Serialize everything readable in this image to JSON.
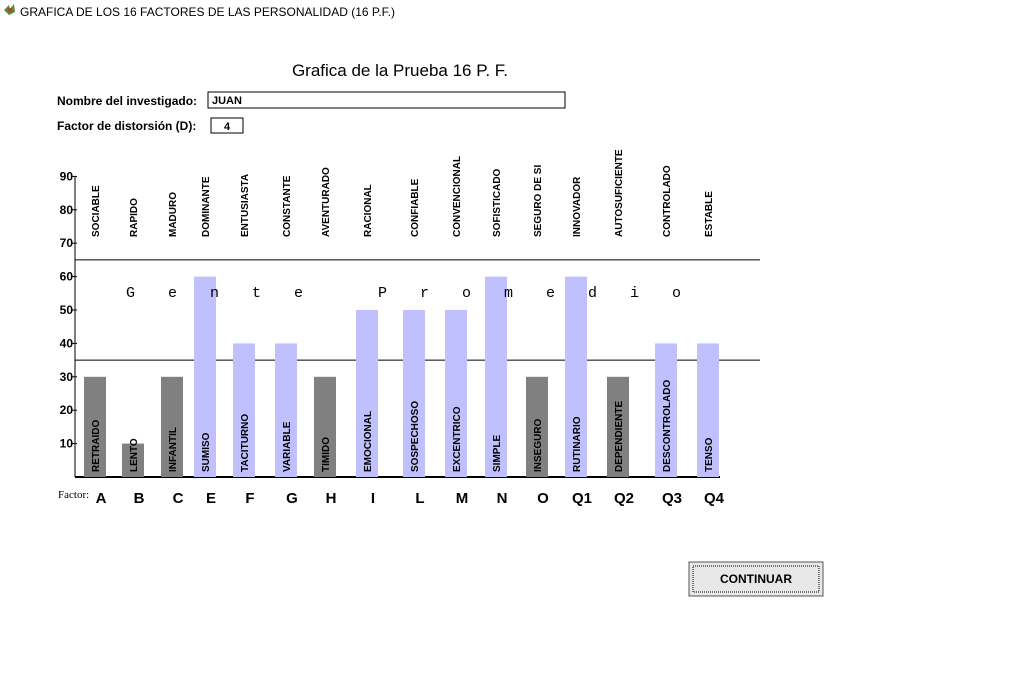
{
  "window": {
    "title": "GRAFICA DE LOS 16 FACTORES DE LAS PERSONALIDAD (16 P.F.)"
  },
  "heading": "Grafica de la Prueba 16 P. F.",
  "fields": [
    {
      "label": "Nombre del investigado:",
      "value": "JUAN"
    },
    {
      "label": "Factor de distorsión (D):",
      "value": 4
    }
  ],
  "chart_data": {
    "type": "bar",
    "x_label": "Factor:",
    "categories": [
      "A",
      "B",
      "C",
      "E",
      "F",
      "G",
      "H",
      "I",
      "L",
      "M",
      "N",
      "O",
      "Q1",
      "Q2",
      "Q3",
      "Q4"
    ],
    "values": [
      30,
      10,
      30,
      60,
      40,
      40,
      30,
      50,
      50,
      50,
      60,
      30,
      60,
      30,
      40,
      40
    ],
    "colors": [
      "#808080",
      "#808080",
      "#808080",
      "#c0c0ff",
      "#c0c0ff",
      "#c0c0ff",
      "#808080",
      "#c0c0ff",
      "#c0c0ff",
      "#c0c0ff",
      "#c0c0ff",
      "#808080",
      "#c0c0ff",
      "#808080",
      "#c0c0ff",
      "#c0c0ff"
    ],
    "high_labels": [
      "SOCIABLE",
      "RAPIDO",
      "MADURO",
      "DOMINANTE",
      "ENTUSIASTA",
      "CONSTANTE",
      "AVENTURADO",
      "RACIONAL",
      "CONFIABLE",
      "CONVENCIONAL",
      "SOFISTICADO",
      "SEGURO DE SI",
      "INNOVADOR",
      "AUTOSUFICIENTE",
      "CONTROLADO",
      "ESTABLE"
    ],
    "low_labels": [
      "RETRAIDO",
      "LENTO",
      "INFANTIL",
      "SUMISO",
      "TACITURNO",
      "VARIABLE",
      "TIMIDO",
      "EMOCIONAL",
      "SOSPECHOSO",
      "EXCENTRICO",
      "SIMPLE",
      "INSEGURO",
      "RUTINARIO",
      "DEPENDIENTE",
      "DESCONTROLADO",
      "TENSO"
    ],
    "band": [
      35,
      65
    ],
    "band_label": "Gente Promedio",
    "ylim": [
      0,
      90
    ],
    "yticks": [
      10,
      20,
      30,
      40,
      50,
      60,
      70,
      80,
      90
    ]
  },
  "button": "CONTINUAR"
}
